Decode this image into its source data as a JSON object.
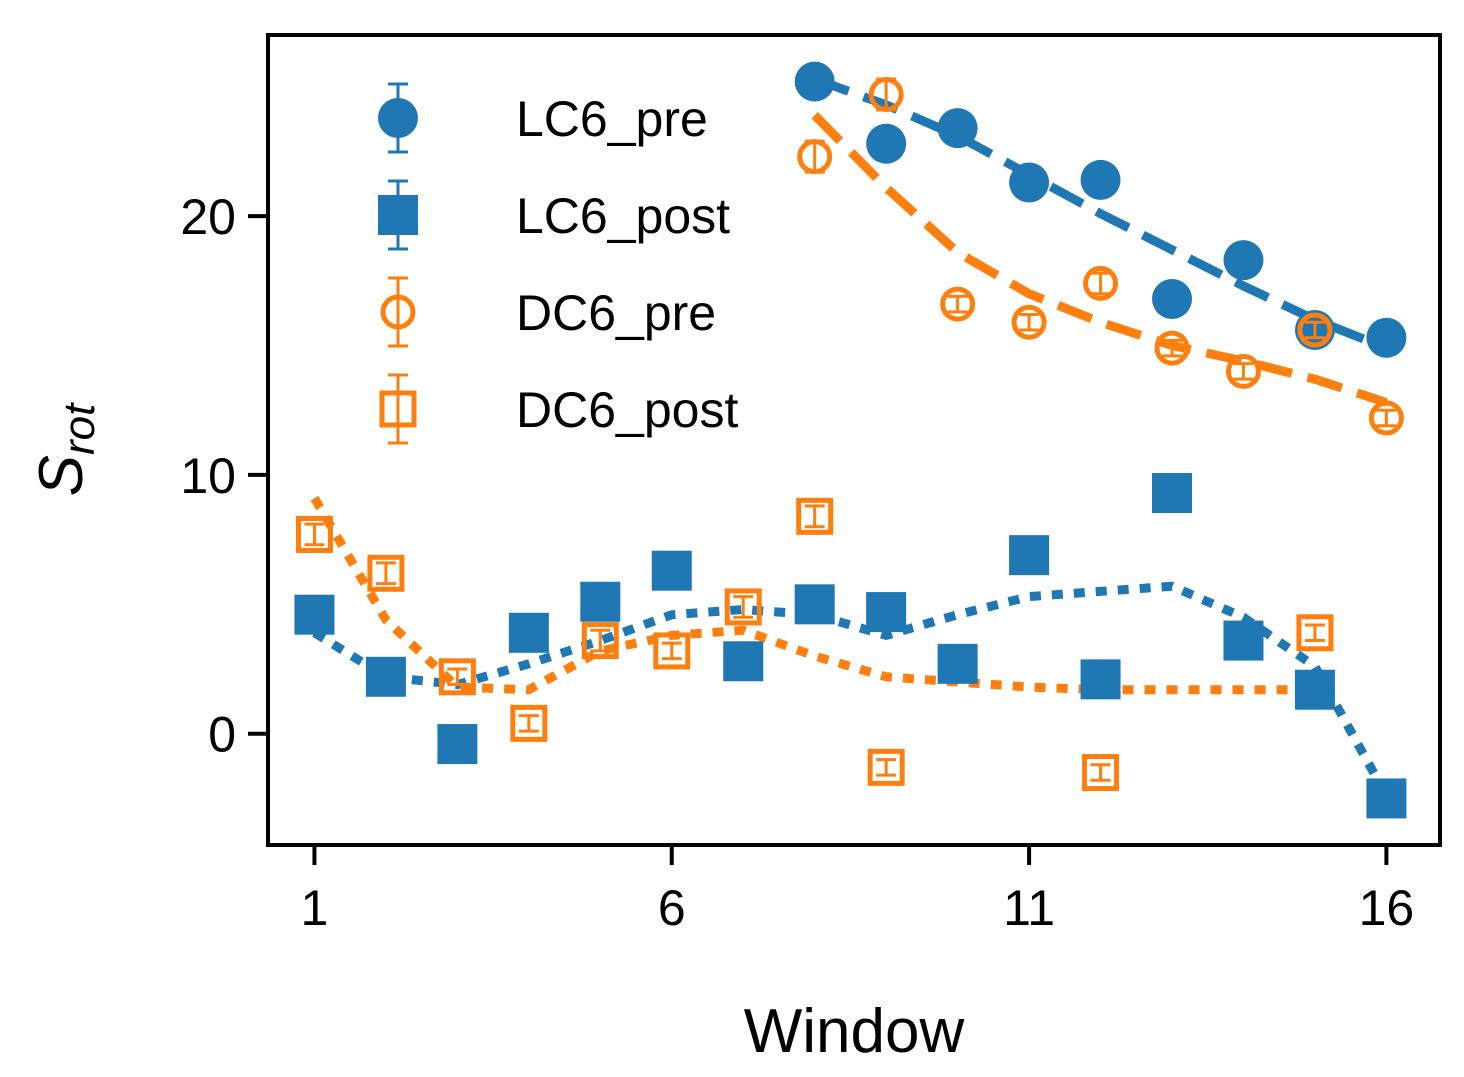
{
  "chart_data": {
    "type": "scatter",
    "title": "",
    "xlabel": "Window",
    "ylabel_main": "S",
    "ylabel_sub": "rot",
    "xlim": [
      0.35,
      16.75
    ],
    "ylim": [
      -4.3,
      27
    ],
    "xticks": [
      1,
      6,
      11,
      16
    ],
    "yticks": [
      0,
      10,
      20
    ],
    "grid": false,
    "legend_position": "top-left",
    "colors": {
      "blue": "#1f77b4",
      "orange": "#ff7f0e"
    },
    "series": [
      {
        "name": "LC6_pre",
        "color": "#1f77b4",
        "marker": "circle-filled",
        "x": [
          8,
          9,
          10,
          11,
          12,
          13,
          14,
          15,
          16
        ],
        "y": [
          25.2,
          22.8,
          23.4,
          21.3,
          21.4,
          16.8,
          18.3,
          15.6,
          15.3
        ],
        "yerr": [
          0.4,
          0.3,
          0.3,
          0.3,
          0.3,
          0.3,
          0.3,
          0.3,
          0.3
        ]
      },
      {
        "name": "LC6_post",
        "color": "#1f77b4",
        "marker": "square-filled",
        "x": [
          1,
          2,
          3,
          4,
          5,
          6,
          7,
          8,
          9,
          10,
          11,
          12,
          13,
          14,
          15,
          16
        ],
        "y": [
          4.6,
          2.2,
          -0.4,
          3.9,
          5.1,
          6.3,
          2.8,
          5.0,
          4.7,
          2.7,
          6.9,
          2.1,
          9.3,
          3.6,
          1.7,
          -2.5
        ],
        "yerr": [
          0.3,
          0.3,
          0.3,
          0.3,
          0.3,
          0.3,
          0.3,
          0.3,
          0.3,
          0.3,
          0.3,
          0.3,
          0.3,
          0.3,
          0.3,
          0.3
        ]
      },
      {
        "name": "DC6_pre",
        "color": "#ff7f0e",
        "marker": "circle-open",
        "x": [
          8,
          9,
          10,
          11,
          12,
          13,
          14,
          15,
          16
        ],
        "y": [
          22.3,
          24.7,
          16.6,
          15.9,
          17.4,
          14.9,
          14.0,
          15.6,
          12.2
        ],
        "yerr": [
          0.6,
          0.6,
          0.3,
          0.3,
          0.4,
          0.3,
          0.3,
          0.3,
          0.3
        ]
      },
      {
        "name": "DC6_post",
        "color": "#ff7f0e",
        "marker": "square-open",
        "x": [
          1,
          2,
          3,
          4,
          5,
          6,
          7,
          8,
          9,
          12,
          15
        ],
        "y": [
          7.7,
          6.2,
          2.2,
          0.4,
          3.6,
          3.2,
          4.9,
          8.4,
          -1.3,
          -1.5,
          3.9
        ],
        "yerr": [
          0.4,
          0.4,
          0.3,
          0.3,
          0.4,
          0.3,
          0.4,
          0.4,
          0.3,
          0.3,
          0.3
        ]
      }
    ],
    "fits": [
      {
        "name": "LC6_pre_fit",
        "color": "#1f77b4",
        "style": "dashed",
        "x": [
          8,
          9,
          10,
          11,
          12,
          13,
          14,
          15,
          16
        ],
        "y": [
          25.3,
          24.3,
          23.1,
          21.6,
          20.1,
          18.7,
          17.3,
          16.0,
          14.9
        ]
      },
      {
        "name": "DC6_pre_fit",
        "color": "#ff7f0e",
        "style": "dashed",
        "x": [
          8,
          8.5,
          9,
          10,
          11,
          12,
          13,
          14,
          15,
          16
        ],
        "y": [
          23.9,
          22.5,
          21.1,
          18.6,
          17.0,
          15.9,
          15.0,
          14.4,
          13.7,
          12.8
        ]
      },
      {
        "name": "LC6_post_fit",
        "color": "#1f77b4",
        "style": "dotted",
        "x": [
          1,
          2,
          3,
          4,
          5,
          6,
          7,
          8,
          9,
          10,
          11,
          12,
          13,
          14,
          15,
          16
        ],
        "y": [
          3.9,
          2.2,
          1.9,
          2.7,
          3.6,
          4.6,
          4.8,
          4.6,
          3.8,
          4.6,
          5.3,
          5.5,
          5.7,
          4.5,
          2.6,
          -2.4
        ]
      },
      {
        "name": "DC6_post_fit",
        "color": "#ff7f0e",
        "style": "dotted",
        "x": [
          1,
          2,
          3,
          4,
          5,
          6,
          7,
          8,
          9,
          10,
          11,
          12,
          13,
          14,
          15
        ],
        "y": [
          9.1,
          4.4,
          1.8,
          1.7,
          3.2,
          3.8,
          4.0,
          3.0,
          2.2,
          2.0,
          1.8,
          1.7,
          1.7,
          1.7,
          1.7
        ]
      }
    ]
  }
}
